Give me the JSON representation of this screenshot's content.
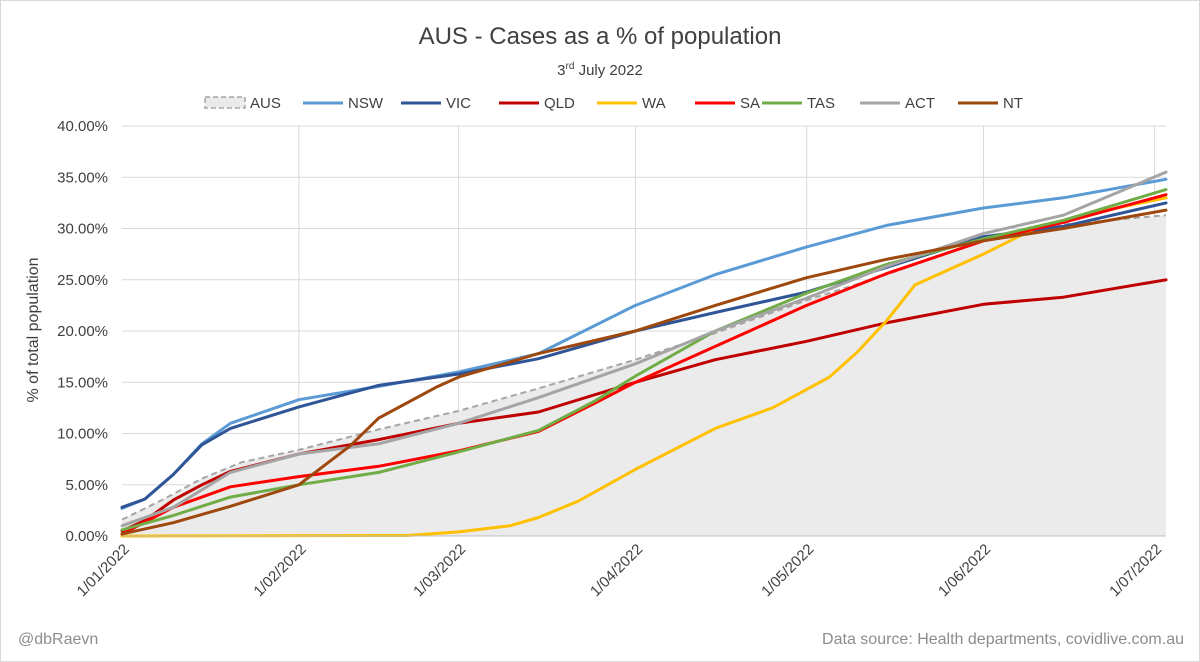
{
  "chart_data": {
    "type": "line",
    "title": "AUS - Cases as a % of population",
    "subtitle": {
      "day": "3",
      "suffix": "rd",
      "rest": " July 2022"
    },
    "ylabel": "% of total population",
    "xlabel": "",
    "ylim": [
      0,
      40
    ],
    "yticks": [
      "0.00%",
      "5.00%",
      "10.00%",
      "15.00%",
      "20.00%",
      "25.00%",
      "30.00%",
      "35.00%",
      "40.00%"
    ],
    "xticks": [
      "1/01/2022",
      "1/02/2022",
      "1/03/2022",
      "1/04/2022",
      "1/05/2022",
      "1/06/2022",
      "1/07/2022"
    ],
    "grid": true,
    "legend_position": "top",
    "footer_left": "@dbRaevn",
    "footer_right": "Data source: Health departments, covidlive.com.au",
    "series": [
      {
        "name": "AUS",
        "style": "area-dashed",
        "color": "#a6a6a6",
        "fill": "#ebebeb",
        "points": [
          [
            "2022-01-01",
            1.6
          ],
          [
            "2022-01-08",
            3.5
          ],
          [
            "2022-01-15",
            5.6
          ],
          [
            "2022-01-22",
            7.2
          ],
          [
            "2022-02-01",
            8.4
          ],
          [
            "2022-02-15",
            10.4
          ],
          [
            "2022-03-01",
            12.2
          ],
          [
            "2022-03-15",
            14.4
          ],
          [
            "2022-04-01",
            17.2
          ],
          [
            "2022-04-15",
            19.8
          ],
          [
            "2022-05-01",
            23.0
          ],
          [
            "2022-05-15",
            25.5
          ],
          [
            "2022-06-01",
            28.8
          ],
          [
            "2022-06-15",
            30.4
          ],
          [
            "2022-07-03",
            31.3
          ]
        ]
      },
      {
        "name": "NSW",
        "color": "#5b9bd5",
        "points": [
          [
            "2022-01-01",
            2.7
          ],
          [
            "2022-01-05",
            3.6
          ],
          [
            "2022-01-10",
            6.0
          ],
          [
            "2022-01-15",
            9.0
          ],
          [
            "2022-01-20",
            11.0
          ],
          [
            "2022-02-01",
            13.3
          ],
          [
            "2022-02-15",
            14.6
          ],
          [
            "2022-03-01",
            16.0
          ],
          [
            "2022-03-15",
            17.8
          ],
          [
            "2022-04-01",
            22.5
          ],
          [
            "2022-04-15",
            25.5
          ],
          [
            "2022-05-01",
            28.2
          ],
          [
            "2022-05-15",
            30.3
          ],
          [
            "2022-06-01",
            32.0
          ],
          [
            "2022-06-15",
            33.0
          ],
          [
            "2022-07-03",
            34.8
          ]
        ]
      },
      {
        "name": "VIC",
        "color": "#2f5597",
        "points": [
          [
            "2022-01-01",
            2.8
          ],
          [
            "2022-01-05",
            3.6
          ],
          [
            "2022-01-10",
            6.0
          ],
          [
            "2022-01-15",
            8.9
          ],
          [
            "2022-01-20",
            10.5
          ],
          [
            "2022-02-01",
            12.6
          ],
          [
            "2022-02-15",
            14.7
          ],
          [
            "2022-03-01",
            15.8
          ],
          [
            "2022-03-15",
            17.3
          ],
          [
            "2022-04-01",
            20.0
          ],
          [
            "2022-04-15",
            21.8
          ],
          [
            "2022-05-01",
            23.8
          ],
          [
            "2022-05-15",
            26.2
          ],
          [
            "2022-06-01",
            29.2
          ],
          [
            "2022-06-15",
            30.2
          ],
          [
            "2022-07-03",
            32.5
          ]
        ]
      },
      {
        "name": "QLD",
        "color": "#c00000",
        "points": [
          [
            "2022-01-01",
            0.5
          ],
          [
            "2022-01-05",
            1.5
          ],
          [
            "2022-01-10",
            3.5
          ],
          [
            "2022-01-15",
            5.0
          ],
          [
            "2022-01-20",
            6.3
          ],
          [
            "2022-02-01",
            8.0
          ],
          [
            "2022-02-15",
            9.4
          ],
          [
            "2022-03-01",
            11.0
          ],
          [
            "2022-03-15",
            12.1
          ],
          [
            "2022-04-01",
            15.0
          ],
          [
            "2022-04-15",
            17.2
          ],
          [
            "2022-05-01",
            19.0
          ],
          [
            "2022-05-15",
            20.8
          ],
          [
            "2022-06-01",
            22.6
          ],
          [
            "2022-06-15",
            23.3
          ],
          [
            "2022-07-03",
            25.0
          ]
        ]
      },
      {
        "name": "WA",
        "color": "#ffc000",
        "points": [
          [
            "2022-01-01",
            0.0
          ],
          [
            "2022-02-20",
            0.05
          ],
          [
            "2022-03-01",
            0.4
          ],
          [
            "2022-03-10",
            1.0
          ],
          [
            "2022-03-15",
            1.8
          ],
          [
            "2022-03-22",
            3.4
          ],
          [
            "2022-04-01",
            6.5
          ],
          [
            "2022-04-15",
            10.5
          ],
          [
            "2022-04-25",
            12.5
          ],
          [
            "2022-05-05",
            15.5
          ],
          [
            "2022-05-10",
            18.0
          ],
          [
            "2022-05-15",
            21.0
          ],
          [
            "2022-05-20",
            24.5
          ],
          [
            "2022-06-01",
            27.5
          ],
          [
            "2022-06-10",
            30.0
          ],
          [
            "2022-06-20",
            31.5
          ],
          [
            "2022-07-03",
            33.0
          ]
        ]
      },
      {
        "name": "SA",
        "color": "#ff0000",
        "points": [
          [
            "2022-01-01",
            0.2
          ],
          [
            "2022-01-10",
            2.8
          ],
          [
            "2022-01-20",
            4.8
          ],
          [
            "2022-02-01",
            5.8
          ],
          [
            "2022-02-15",
            6.8
          ],
          [
            "2022-03-01",
            8.3
          ],
          [
            "2022-03-15",
            10.2
          ],
          [
            "2022-03-25",
            13.0
          ],
          [
            "2022-04-01",
            15.0
          ],
          [
            "2022-04-15",
            18.5
          ],
          [
            "2022-05-01",
            22.5
          ],
          [
            "2022-05-15",
            25.6
          ],
          [
            "2022-06-01",
            28.8
          ],
          [
            "2022-06-15",
            30.6
          ],
          [
            "2022-07-03",
            33.3
          ]
        ]
      },
      {
        "name": "TAS",
        "color": "#70ad47",
        "points": [
          [
            "2022-01-01",
            0.6
          ],
          [
            "2022-01-10",
            2.0
          ],
          [
            "2022-01-20",
            3.8
          ],
          [
            "2022-02-01",
            5.0
          ],
          [
            "2022-02-15",
            6.2
          ],
          [
            "2022-03-01",
            8.2
          ],
          [
            "2022-03-15",
            10.3
          ],
          [
            "2022-03-25",
            13.2
          ],
          [
            "2022-04-01",
            15.6
          ],
          [
            "2022-04-15",
            20.0
          ],
          [
            "2022-05-01",
            23.7
          ],
          [
            "2022-05-15",
            26.5
          ],
          [
            "2022-06-01",
            29.0
          ],
          [
            "2022-06-15",
            30.8
          ],
          [
            "2022-07-03",
            33.8
          ]
        ]
      },
      {
        "name": "ACT",
        "color": "#a5a5a5",
        "points": [
          [
            "2022-01-01",
            1.0
          ],
          [
            "2022-01-10",
            2.8
          ],
          [
            "2022-01-20",
            6.2
          ],
          [
            "2022-02-01",
            8.0
          ],
          [
            "2022-02-15",
            9.0
          ],
          [
            "2022-03-01",
            11.0
          ],
          [
            "2022-03-15",
            13.5
          ],
          [
            "2022-04-01",
            16.8
          ],
          [
            "2022-04-15",
            20.0
          ],
          [
            "2022-05-01",
            23.2
          ],
          [
            "2022-05-15",
            26.3
          ],
          [
            "2022-06-01",
            29.5
          ],
          [
            "2022-06-15",
            31.3
          ],
          [
            "2022-07-03",
            35.5
          ]
        ]
      },
      {
        "name": "NT",
        "color": "#9e480e",
        "points": [
          [
            "2022-01-01",
            0.2
          ],
          [
            "2022-01-10",
            1.3
          ],
          [
            "2022-01-20",
            2.9
          ],
          [
            "2022-02-01",
            5.0
          ],
          [
            "2022-02-10",
            8.8
          ],
          [
            "2022-02-15",
            11.5
          ],
          [
            "2022-02-25",
            14.5
          ],
          [
            "2022-03-01",
            15.5
          ],
          [
            "2022-03-15",
            17.8
          ],
          [
            "2022-04-01",
            20.0
          ],
          [
            "2022-04-15",
            22.5
          ],
          [
            "2022-05-01",
            25.2
          ],
          [
            "2022-05-15",
            27.0
          ],
          [
            "2022-06-01",
            28.8
          ],
          [
            "2022-06-15",
            30.0
          ],
          [
            "2022-07-03",
            31.8
          ]
        ]
      }
    ]
  }
}
